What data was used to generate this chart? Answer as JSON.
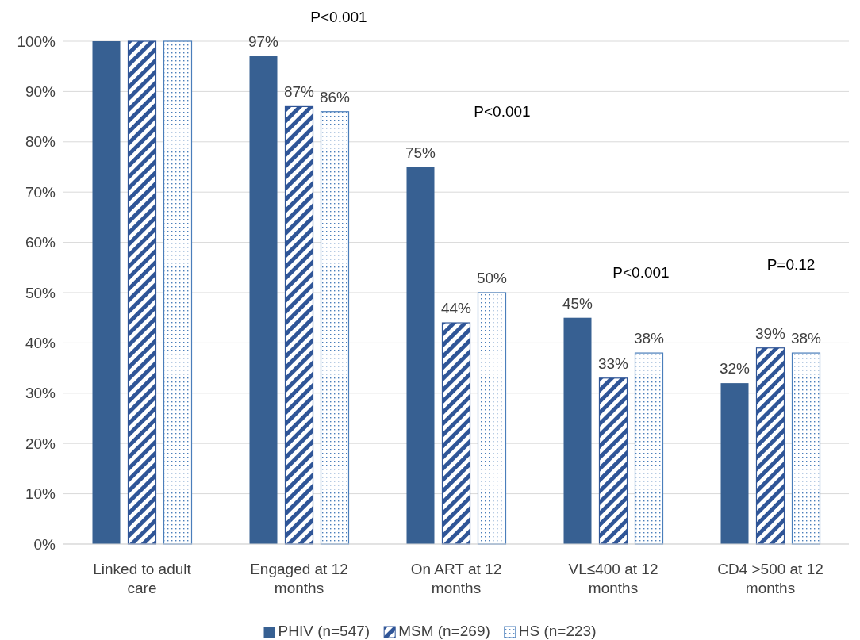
{
  "chart_data": {
    "type": "bar",
    "categories": [
      "Linked to adult care",
      "Engaged at 12 months",
      "On ART at 12 months",
      "VL≤400 at 12 months",
      "CD4 >500 at 12 months"
    ],
    "series": [
      {
        "name": "PHIV (n=547)",
        "color": "#376092",
        "values": [
          100,
          97,
          75,
          45,
          32
        ],
        "value_labels": [
          null,
          "97%",
          "75%",
          "45%",
          "32%"
        ]
      },
      {
        "name": "MSM (n=269)",
        "color": "#2f5597",
        "values": [
          100,
          87,
          44,
          33,
          39
        ],
        "value_labels": [
          null,
          "87%",
          "44%",
          "33%",
          "39%"
        ]
      },
      {
        "name": "HS (n=223)",
        "color": "#4a7ebb",
        "values": [
          100,
          86,
          50,
          38,
          38
        ],
        "value_labels": [
          null,
          "86%",
          "50%",
          "38%",
          "38%"
        ]
      }
    ],
    "ylim": [
      0,
      100
    ],
    "yticks": [
      {
        "value": 0,
        "label": "0%"
      },
      {
        "value": 10,
        "label": "10%"
      },
      {
        "value": 20,
        "label": "20%"
      },
      {
        "value": 30,
        "label": "30%"
      },
      {
        "value": 40,
        "label": "40%"
      },
      {
        "value": 50,
        "label": "50%"
      },
      {
        "value": 60,
        "label": "60%"
      },
      {
        "value": 70,
        "label": "70%"
      },
      {
        "value": 80,
        "label": "80%"
      },
      {
        "value": 90,
        "label": "90%"
      },
      {
        "value": 100,
        "label": "100%"
      }
    ],
    "annotations": [
      "P<0.001",
      "P<0.001",
      "P<0.001",
      "P=0.12"
    ],
    "grid": "y",
    "legend": "bottom"
  }
}
